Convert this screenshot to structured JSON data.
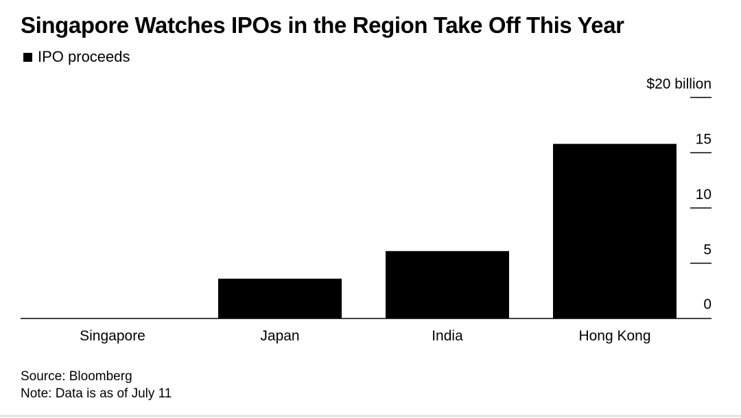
{
  "chart_data": {
    "type": "bar",
    "title": "Singapore Watches IPOs in the Region Take Off This Year",
    "legend": {
      "label": "IPO proceeds",
      "placement": "top-left"
    },
    "categories": [
      "Singapore",
      "Japan",
      "India",
      "Hong Kong"
    ],
    "series": [
      {
        "name": "IPO proceeds",
        "values": [
          0,
          3.6,
          6.1,
          15.8
        ]
      }
    ],
    "ylim": [
      0,
      20
    ],
    "yticks": [
      0,
      5,
      10,
      15,
      20
    ],
    "ytick_labels": [
      "0",
      "5",
      "10",
      "15",
      "$20 billion"
    ],
    "yaxis_side": "right",
    "grid": false,
    "bar_color": "#000000"
  },
  "footer": {
    "source": "Source: Bloomberg",
    "note": "Note: Data is as of July 11"
  }
}
